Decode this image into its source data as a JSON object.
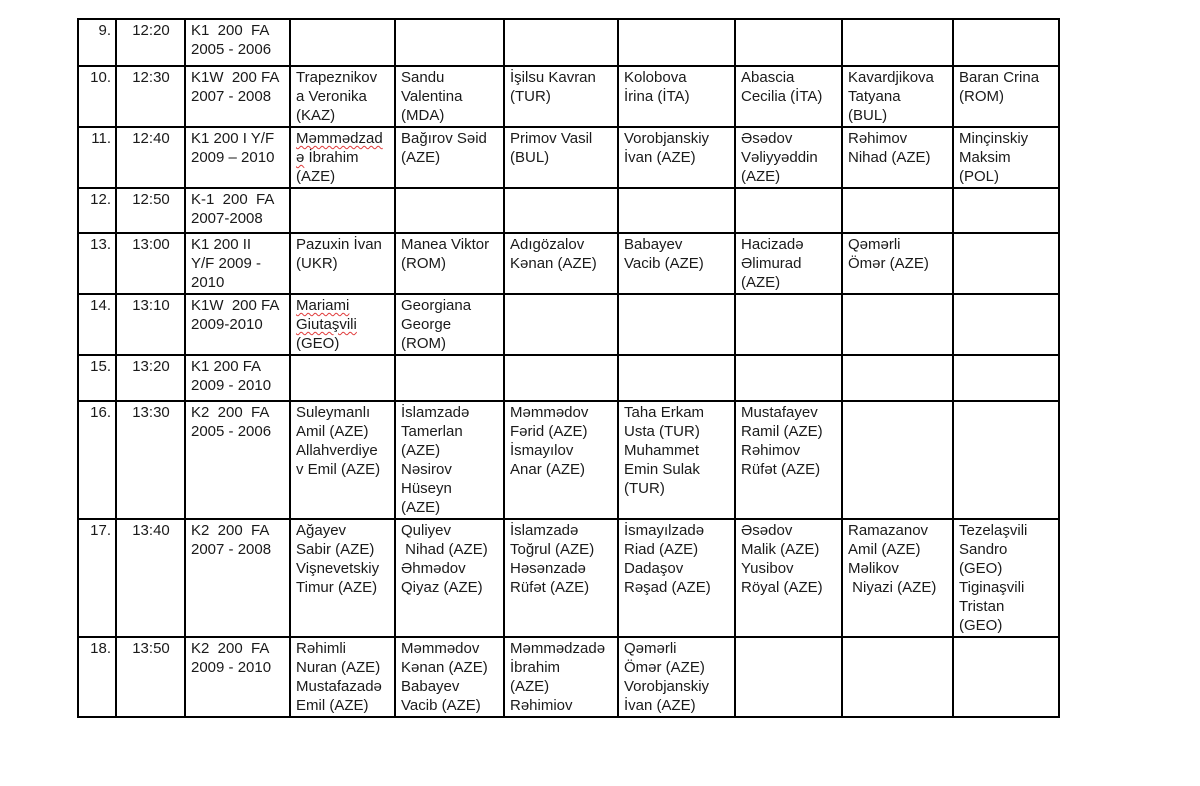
{
  "colors": {
    "text": "#1a1a1a",
    "table_border": "#000000",
    "number_divider": "#8e8e8e",
    "spellcheck_underline": "#e03a3a",
    "background": "#ffffff"
  },
  "table": {
    "rows": [
      {
        "num": "9.",
        "time": "12:20",
        "category": "K1  200  FA\n2005 - 2006",
        "entries": [
          "",
          "",
          "",
          "",
          "",
          "",
          ""
        ]
      },
      {
        "num": "10.",
        "time": "12:30",
        "category": "K1W  200 FA\n2007 - 2008",
        "entries": [
          "Trapeznikov\na Veronika\n(KAZ)",
          "Sandu\nValentina\n(MDA)",
          "İşilsu Kavran\n(TUR)",
          "Kolobova\nİrina (İTA)",
          "Abascia\nCecilia (İTA)",
          "Kavardjikova\nTatyana\n(BUL)",
          "Baran Crina\n(ROM)"
        ]
      },
      {
        "num": "11.",
        "time": "12:40",
        "category": "K1 200 I Y/F\n2009 – 2010",
        "entries": [
          [
            {
              "t": "Məmmədzad",
              "sp": true
            },
            {
              "t": "\n"
            },
            {
              "t": "ə",
              "sp": true
            },
            {
              "t": " İbrahim\n(AZE)"
            }
          ],
          "Bağırov Səid\n(AZE)",
          "Primov Vasil\n(BUL)",
          "Vorobjanskiy\nİvan (AZE)",
          "Əsədov\nVəliyyəddin\n(AZE)",
          "Rəhimov\nNihad (AZE)",
          "Minçinskiy\nMaksim\n(POL)"
        ]
      },
      {
        "num": "12.",
        "time": "12:50",
        "category": "K-1  200  FA\n2007-2008",
        "entries": [
          "",
          "",
          "",
          "",
          "",
          "",
          ""
        ]
      },
      {
        "num": "13.",
        "time": "13:00",
        "category": "K1 200 II\nY/F 2009 -\n2010",
        "entries": [
          "Pazuxin İvan\n(UKR)",
          "Manea Viktor\n(ROM)",
          "Adıgözalov\nKənan (AZE)",
          "Babayev\nVacib (AZE)",
          "Hacizadə\nƏlimurad\n(AZE)",
          "Qəmərli\nÖmər (AZE)",
          ""
        ]
      },
      {
        "num": "14.",
        "time": "13:10",
        "category": "K1W  200 FA\n2009-2010",
        "entries": [
          [
            {
              "t": "Mariami",
              "sp": true
            },
            {
              "t": "\n"
            },
            {
              "t": "Giutaşvili",
              "sp": true
            },
            {
              "t": "\n(GEO)"
            }
          ],
          "Georgiana\nGeorge\n(ROM)",
          "",
          "",
          "",
          "",
          ""
        ]
      },
      {
        "num": "15.",
        "time": "13:20",
        "category": "K1 200 FA\n2009 - 2010",
        "entries": [
          "",
          "",
          "",
          "",
          "",
          "",
          ""
        ]
      },
      {
        "num": "16.",
        "time": "13:30",
        "category": "K2  200  FA\n2005 - 2006",
        "entries": [
          "Suleymanlı\nAmil (AZE)\nAllahverdiye\nv Emil (AZE)",
          "İslamzadə\nTamerlan\n(AZE)\nNəsirov\nHüseyn\n(AZE)",
          "Məmmədov\nFərid (AZE)\nİsmayılov\nAnar (AZE)",
          "Taha Erkam\nUsta (TUR)\nMuhammet\nEmin Sulak\n(TUR)",
          "Mustafayev\nRamil (AZE)\nRəhimov\nRüfət (AZE)",
          "",
          ""
        ]
      },
      {
        "num": "17.",
        "time": "13:40",
        "category": "K2  200  FA\n2007 - 2008",
        "entries": [
          "Ağayev\nSabir (AZE)\nVişnevetskiy\nTimur (AZE)",
          "Quliyev\n Nihad (AZE)\nƏhmədov\nQiyaz (AZE)",
          "İslamzadə\nToğrul (AZE)\nHəsənzadə\nRüfət (AZE)",
          "İsmayılzadə\nRiad (AZE)\nDadaşov\nRəşad (AZE)",
          "Əsədov\nMalik (AZE)\nYusibov\nRöyal (AZE)",
          "Ramazanov\nAmil (AZE)\nMəlikov\n Niyazi (AZE)",
          "Tezelaşvili\nSandro\n(GEO)\nTiginaşvili\nTristan\n(GEO)"
        ]
      },
      {
        "num": "18.",
        "time": "13:50",
        "category": "K2  200  FA\n2009 - 2010",
        "entries": [
          "Rəhimli\nNuran (AZE)\nMustafazadə\nEmil (AZE)",
          "Məmmədov\nKənan (AZE)\nBabayev\nVacib (AZE)",
          "Məmmədzadə\nİbrahim\n(AZE)\nRəhimiov",
          "Qəmərli\nÖmər (AZE)\nVorobjanskiy\nİvan (AZE)",
          "",
          "",
          ""
        ]
      }
    ]
  }
}
